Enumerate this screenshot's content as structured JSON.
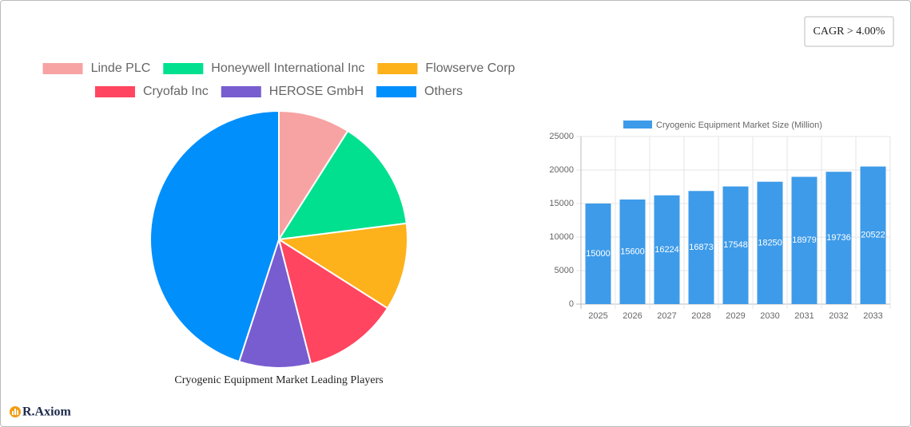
{
  "badge": "CAGR > 4.00%",
  "logo": "R.Axiom",
  "chart_data": [
    {
      "type": "pie",
      "title": "Cryogenic Equipment Market Leading Players",
      "categories": [
        "Linde PLC",
        "Honeywell International Inc",
        "Flowserve Corp",
        "Cryofab Inc",
        "HEROSE GmbH",
        "Others"
      ],
      "values": [
        9,
        14,
        11,
        12,
        9,
        45
      ],
      "colors": [
        "#f7a3a3",
        "#00e08f",
        "#fdb11b",
        "#ff4560",
        "#775dd0",
        "#008ffb"
      ]
    },
    {
      "type": "bar",
      "categories": [
        "2025",
        "2026",
        "2027",
        "2028",
        "2029",
        "2030",
        "2031",
        "2032",
        "2033"
      ],
      "series": [
        {
          "name": "Cryogenic Equipment Market Size (Million)",
          "color": "#3e9be9",
          "values": [
            15000,
            15600,
            16224,
            16873,
            17548,
            18250,
            18979,
            19736,
            20522
          ]
        }
      ],
      "ylim": [
        0,
        25000
      ],
      "yticks": [
        0,
        5000,
        10000,
        15000,
        20000,
        25000
      ],
      "grid": true
    }
  ]
}
